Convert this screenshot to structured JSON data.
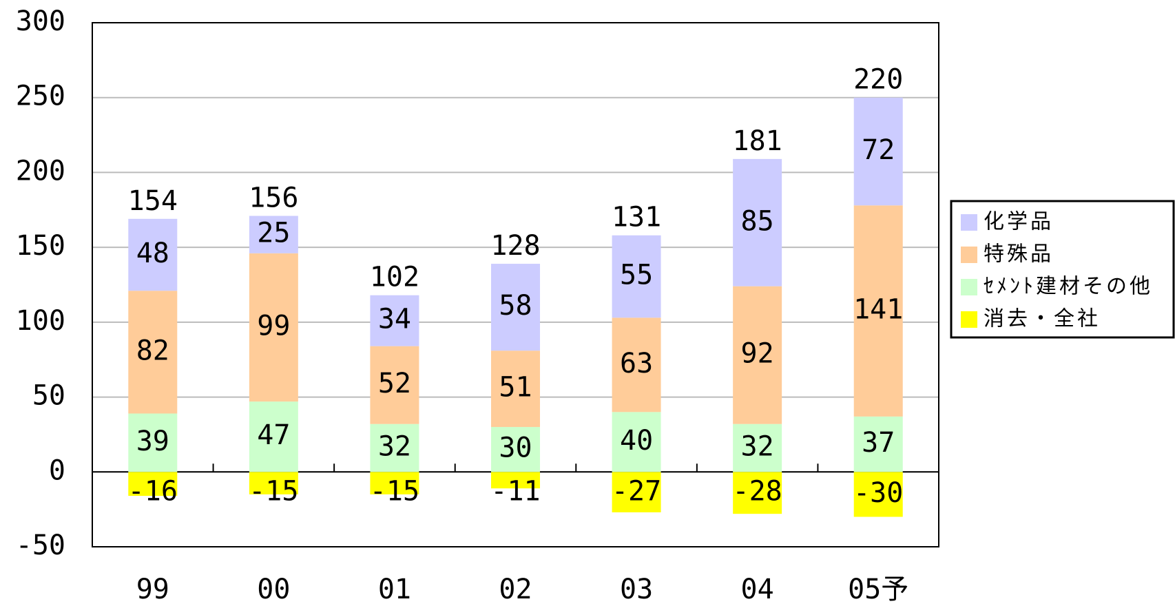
{
  "chart_data": {
    "type": "stacked_bar",
    "categories": [
      "99",
      "00",
      "01",
      "02",
      "03",
      "04",
      "05予"
    ],
    "series": [
      {
        "name": "化学品",
        "color": "#ccccff",
        "values": [
          48,
          25,
          34,
          58,
          55,
          85,
          72
        ]
      },
      {
        "name": "特殊品",
        "color": "#ffcc99",
        "values": [
          82,
          99,
          52,
          51,
          63,
          92,
          141
        ]
      },
      {
        "name": "ｾﾒﾝﾄ建材その他",
        "color": "#ccffcc",
        "values": [
          39,
          47,
          32,
          30,
          40,
          32,
          37
        ]
      },
      {
        "name": "消去・全社",
        "color": "#ffff00",
        "values": [
          -16,
          -15,
          -15,
          -11,
          -27,
          -28,
          -30
        ]
      }
    ],
    "totals": [
      154,
      156,
      102,
      128,
      131,
      181,
      220
    ],
    "ylim": [
      -50,
      300
    ],
    "yticks": [
      -50,
      0,
      50,
      100,
      150,
      200,
      250,
      300
    ],
    "grid": true,
    "legend": "right"
  }
}
